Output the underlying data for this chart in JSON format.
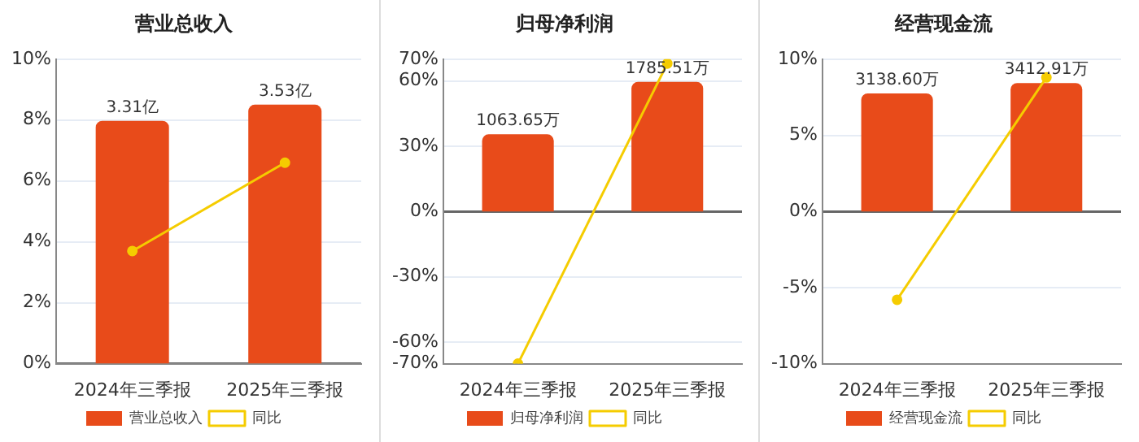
{
  "chart_data": [
    {
      "type": "bar",
      "title": "营业总收入",
      "categories": [
        "2024年三季报",
        "2025年三季报"
      ],
      "series": [
        {
          "name": "营业总收入",
          "axis": "y2",
          "color": "#e84b1a",
          "values": [
            3.31,
            3.53
          ],
          "value_labels": [
            "3.31亿",
            "3.53亿"
          ]
        },
        {
          "name": "同比",
          "type": "line",
          "color": "#f5cc00",
          "values": [
            3.7,
            6.6
          ],
          "marker": "circle"
        }
      ],
      "ylim": [
        0,
        10
      ],
      "yticks": [
        {
          "value": 0,
          "label": "0%"
        },
        {
          "value": 2,
          "label": "2%"
        },
        {
          "value": 4,
          "label": "4%"
        },
        {
          "value": 6,
          "label": "6%"
        },
        {
          "value": 8,
          "label": "8%"
        },
        {
          "value": 10,
          "label": "10%"
        }
      ],
      "y2lim": [
        0,
        4.15
      ],
      "tick_labels": "xy",
      "grid": "y",
      "legend": "bottom"
    },
    {
      "type": "bar",
      "title": "归母净利润",
      "categories": [
        "2024年三季报",
        "2025年三季报"
      ],
      "series": [
        {
          "name": "归母净利润",
          "axis": "y2",
          "color": "#e84b1a",
          "values": [
            1063.65,
            1785.51
          ],
          "value_labels": [
            "1063.65万",
            "1785.51万"
          ]
        },
        {
          "name": "同比",
          "type": "line",
          "color": "#f5cc00",
          "values": [
            -70,
            68
          ],
          "marker": "circle"
        }
      ],
      "ylim": [
        -70,
        70
      ],
      "yticks": [
        {
          "value": -70,
          "label": "-70%"
        },
        {
          "value": -60,
          "label": "-60%"
        },
        {
          "value": -30,
          "label": "-30%"
        },
        {
          "value": 0,
          "label": "0%"
        },
        {
          "value": 30,
          "label": "30%"
        },
        {
          "value": 60,
          "label": "60%"
        },
        {
          "value": 70,
          "label": "70%"
        }
      ],
      "y2lim": [
        -2100,
        2100
      ],
      "tick_labels": "xy",
      "grid": "y",
      "legend": "bottom"
    },
    {
      "type": "bar",
      "title": "经营现金流",
      "categories": [
        "2024年三季报",
        "2025年三季报"
      ],
      "series": [
        {
          "name": "经营现金流",
          "axis": "y2",
          "color": "#e84b1a",
          "values": [
            3138.6,
            3412.91
          ],
          "value_labels": [
            "3138.60万",
            "3412.91万"
          ]
        },
        {
          "name": "同比",
          "type": "line",
          "color": "#f5cc00",
          "values": [
            -5.8,
            8.8
          ],
          "marker": "circle"
        }
      ],
      "ylim": [
        -10,
        10
      ],
      "yticks": [
        {
          "value": -10,
          "label": "-10%"
        },
        {
          "value": -5,
          "label": "-5%"
        },
        {
          "value": 0,
          "label": "0%"
        },
        {
          "value": 5,
          "label": "5%"
        },
        {
          "value": 10,
          "label": "10%"
        }
      ],
      "y2lim": [
        -4050,
        4050
      ],
      "tick_labels": "xy",
      "grid": "y",
      "legend": "bottom"
    }
  ]
}
